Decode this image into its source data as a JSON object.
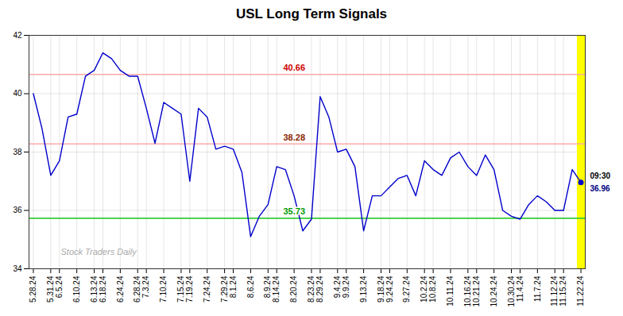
{
  "chart_data": {
    "type": "line",
    "title": "USL Long Term Signals",
    "categories": [
      "5.28.24",
      null,
      "5.31.24",
      "6.5.24",
      null,
      "6.10.24",
      null,
      "6.13.24",
      "6.18.24",
      null,
      "6.24.24",
      null,
      "6.28.24",
      "7.3.24",
      null,
      "7.10.24",
      null,
      "7.15.24",
      "7.19.24",
      null,
      "7.24.24",
      null,
      "7.29.24",
      "8.1.24",
      null,
      "8.6.24",
      null,
      "8.9.24",
      "8.14.24",
      null,
      "8.20.24",
      null,
      "8.23.24",
      "8.29.24",
      null,
      "9.4.24",
      "9.9.24",
      null,
      "9.13.24",
      null,
      "9.18.24",
      "9.24.24",
      null,
      "9.27.24",
      null,
      "10.2.24",
      "10.8.24",
      null,
      "10.11.24",
      null,
      "10.16.24",
      "10.21.24",
      null,
      "10.24.24",
      null,
      "10.30.24",
      "11.4.24",
      null,
      "11.7.24",
      null,
      "11.12.24",
      "11.15.24",
      null,
      "11.22.24"
    ],
    "values": [
      40.0,
      38.8,
      37.2,
      37.7,
      39.2,
      39.3,
      40.6,
      40.8,
      41.4,
      41.2,
      40.8,
      40.6,
      40.6,
      39.5,
      38.3,
      39.7,
      39.5,
      39.3,
      37.0,
      39.5,
      39.2,
      38.1,
      38.2,
      38.1,
      37.3,
      35.1,
      35.8,
      36.2,
      37.5,
      37.4,
      36.5,
      35.3,
      35.7,
      39.9,
      39.2,
      38.0,
      38.1,
      37.5,
      35.3,
      36.5,
      36.5,
      36.8,
      37.1,
      37.2,
      36.5,
      37.7,
      37.4,
      37.2,
      37.8,
      38.0,
      37.5,
      37.2,
      37.9,
      37.4,
      36.0,
      35.8,
      35.7,
      36.2,
      36.5,
      36.3,
      36.0,
      36.0,
      37.4,
      36.96
    ],
    "color": "#0000cc",
    "ylim": [
      34,
      42
    ],
    "yticks": [
      34,
      36,
      38,
      40,
      42
    ],
    "grid": true,
    "reference_lines": [
      {
        "value": 40.66,
        "label": "40.66",
        "color": "#ffaaaa",
        "label_color": "#cc0000"
      },
      {
        "value": 38.28,
        "label": "38.28",
        "color": "#ffaaaa",
        "label_color": "#8b2500"
      },
      {
        "value": 35.73,
        "label": "35.73",
        "color": "#33cc33",
        "label_color": "#009900"
      }
    ],
    "last_point": {
      "value": 36.96,
      "label": "36.96",
      "time": "09:30",
      "color": "#000080",
      "dot_color": "#0000cc"
    },
    "highlight_color": "#ffff00",
    "watermark": "Stock Traders Daily"
  }
}
